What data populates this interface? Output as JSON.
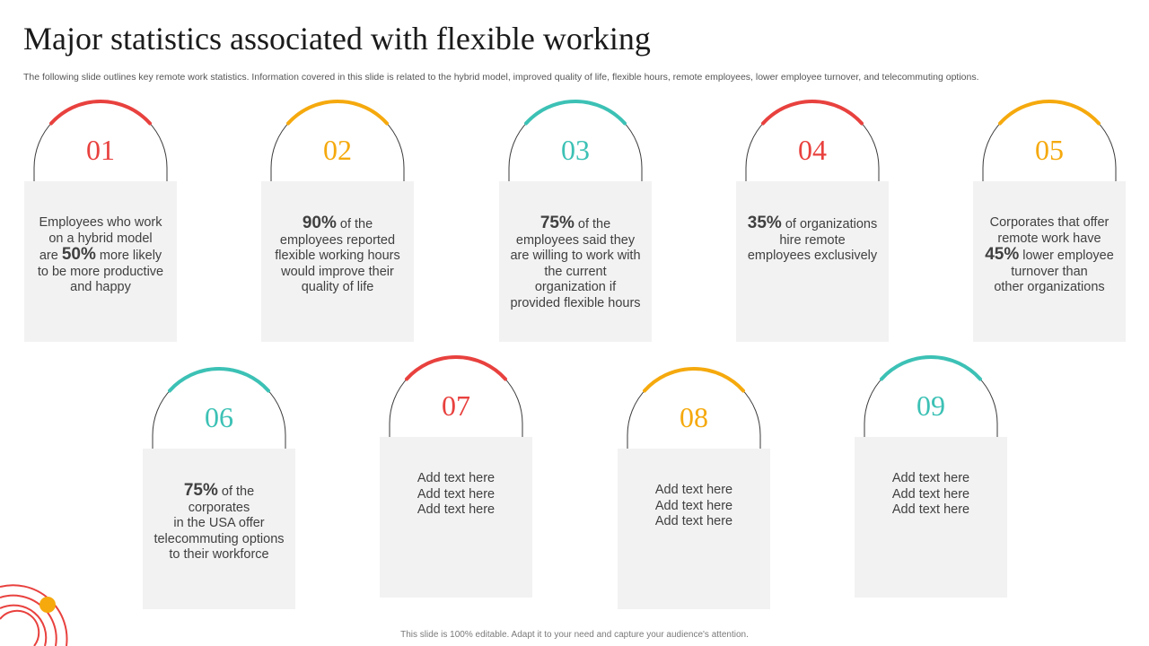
{
  "header": {
    "title": "Major statistics associated with flexible working",
    "subtitle": "The following slide outlines key remote work statistics. Information covered in this slide is related to the hybrid model, improved quality of life, flexible hours, remote employees, lower employee turnover, and telecommuting options."
  },
  "colors": {
    "red": "#e8413e",
    "yellow": "#f5a90d",
    "teal": "#3cc1b5",
    "box": "#f2f2f2",
    "arch_line": "#3a3a3a"
  },
  "cards": [
    {
      "number": "01",
      "lines": [
        [
          "Employees who work"
        ],
        [
          "on a hybrid model"
        ],
        [
          "are ",
          "50%",
          " more likely"
        ],
        [
          "to be more productive"
        ],
        [
          "and happy"
        ]
      ]
    },
    {
      "number": "02",
      "lines": [
        [
          "",
          "90%",
          " of the"
        ],
        [
          "employees reported"
        ],
        [
          "flexible working hours"
        ],
        [
          "would improve their"
        ],
        [
          "quality of life"
        ]
      ]
    },
    {
      "number": "03",
      "lines": [
        [
          "",
          "75%",
          " of the"
        ],
        [
          "employees said they"
        ],
        [
          "are willing to work with"
        ],
        [
          "the current"
        ],
        [
          "organization if"
        ],
        [
          "provided flexible hours"
        ]
      ]
    },
    {
      "number": "04",
      "lines": [
        [
          "",
          "35%",
          " of organizations"
        ],
        [
          "hire remote"
        ],
        [
          "employees exclusively"
        ]
      ]
    },
    {
      "number": "05",
      "lines": [
        [
          "Corporates that offer"
        ],
        [
          "remote work have"
        ],
        [
          "",
          "45%",
          " lower employee"
        ],
        [
          "turnover than"
        ],
        [
          "other organizations"
        ]
      ]
    },
    {
      "number": "06",
      "lines": [
        [
          "",
          "75%",
          " of the corporates"
        ],
        [
          "in the USA offer"
        ],
        [
          "telecommuting options"
        ],
        [
          "to their workforce"
        ]
      ]
    },
    {
      "number": "07",
      "lines": [
        [
          "Add text here"
        ],
        [
          "Add text here"
        ],
        [
          "Add text here"
        ]
      ]
    },
    {
      "number": "08",
      "lines": [
        [
          "Add text here"
        ],
        [
          "Add text here"
        ],
        [
          "Add text here"
        ]
      ]
    },
    {
      "number": "09",
      "lines": [
        [
          "Add text here"
        ],
        [
          "Add text here"
        ],
        [
          "Add text here"
        ]
      ]
    }
  ],
  "footer": {
    "note": "This slide is 100% editable. Adapt it to your need and capture your audience's attention."
  },
  "decoration": {
    "icon": "corner-concentric-arcs-icon"
  }
}
